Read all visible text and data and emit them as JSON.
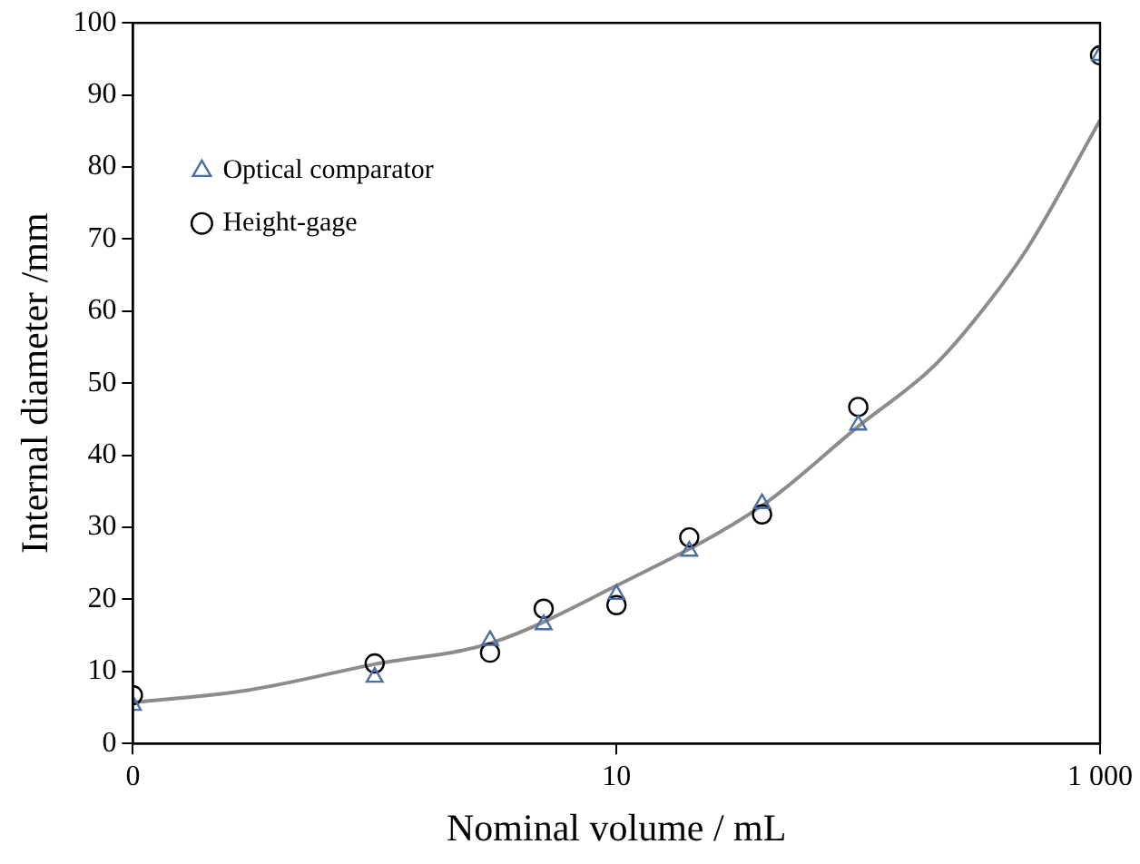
{
  "chart_data": {
    "type": "scatter",
    "xlabel": "Nominal volume / mL",
    "ylabel": "Internal diameter /mm",
    "log": "x",
    "xlim": [
      0.1,
      1000
    ],
    "xticks": [
      {
        "value": 0.1,
        "label": "0"
      },
      10,
      {
        "value": 1000,
        "label": "1 000"
      }
    ],
    "ylim": [
      0,
      100
    ],
    "yticks": [
      0,
      10,
      20,
      30,
      40,
      50,
      60,
      70,
      80,
      90,
      100
    ],
    "grid": false,
    "legend": "top left",
    "series": [
      {
        "name": "Optical comparator",
        "color": "#4a6fa5",
        "marker": "triangle",
        "x": [
          0.1,
          1,
          3,
          5,
          10,
          20,
          40,
          100,
          1000
        ],
        "values": [
          5.3,
          9.2,
          14.3,
          16.5,
          20.7,
          26.7,
          33.3,
          44.2,
          95.5
        ]
      },
      {
        "name": "Height-gage",
        "color": "#000000",
        "marker": "circle",
        "x": [
          0.1,
          1,
          3,
          5,
          10,
          20,
          40,
          100,
          1000
        ],
        "values": [
          6.7,
          11.1,
          12.6,
          18.7,
          19.2,
          28.6,
          31.8,
          46.7,
          95.5
        ]
      },
      {
        "type": "line",
        "color": "#8c8c8c",
        "marker": "none",
        "x": [
          0.1,
          0.3,
          1,
          3,
          10,
          40,
          100,
          200,
          300,
          500,
          1000
        ],
        "values": [
          5.7,
          7.4,
          11,
          13.9,
          21.9,
          33,
          44,
          52,
          58.6,
          68.7,
          86.5
        ]
      }
    ]
  }
}
